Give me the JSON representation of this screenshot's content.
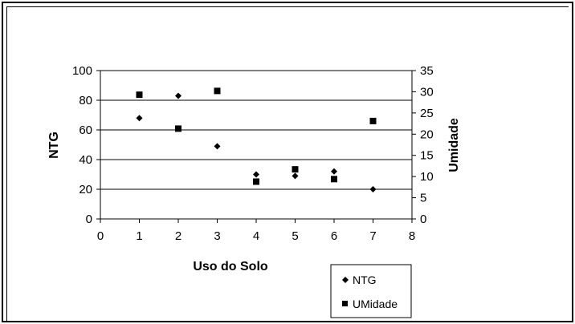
{
  "chart_data": {
    "type": "scatter",
    "title": "",
    "xlabel": "Uso do Solo",
    "ylabel": "NTG",
    "y2label": "Umidade",
    "xlim": [
      0,
      8
    ],
    "ylim": [
      0,
      100
    ],
    "y2lim": [
      0,
      35
    ],
    "xticks": [
      "0",
      "1",
      "2",
      "3",
      "4",
      "5",
      "6",
      "7",
      "8"
    ],
    "yticks": [
      "0",
      "20",
      "40",
      "60",
      "80",
      "100"
    ],
    "y2ticks": [
      "0",
      "5",
      "10",
      "15",
      "20",
      "25",
      "30",
      "35"
    ],
    "grid": "horizontal major gridlines on primary axis",
    "legend_position": "bottom-right",
    "series": [
      {
        "name": "NTG",
        "axis": "primary",
        "marker": "diamond",
        "x": [
          1,
          2,
          3,
          4,
          5,
          6,
          7
        ],
        "y": [
          68,
          83,
          49,
          30,
          29,
          32,
          20
        ]
      },
      {
        "name": "UMidade",
        "axis": "secondary",
        "marker": "square",
        "x": [
          1,
          2,
          3,
          4,
          5,
          6,
          7
        ],
        "y": [
          29.3,
          21.3,
          30.2,
          8.8,
          11.7,
          9.4,
          23.1
        ]
      }
    ]
  }
}
